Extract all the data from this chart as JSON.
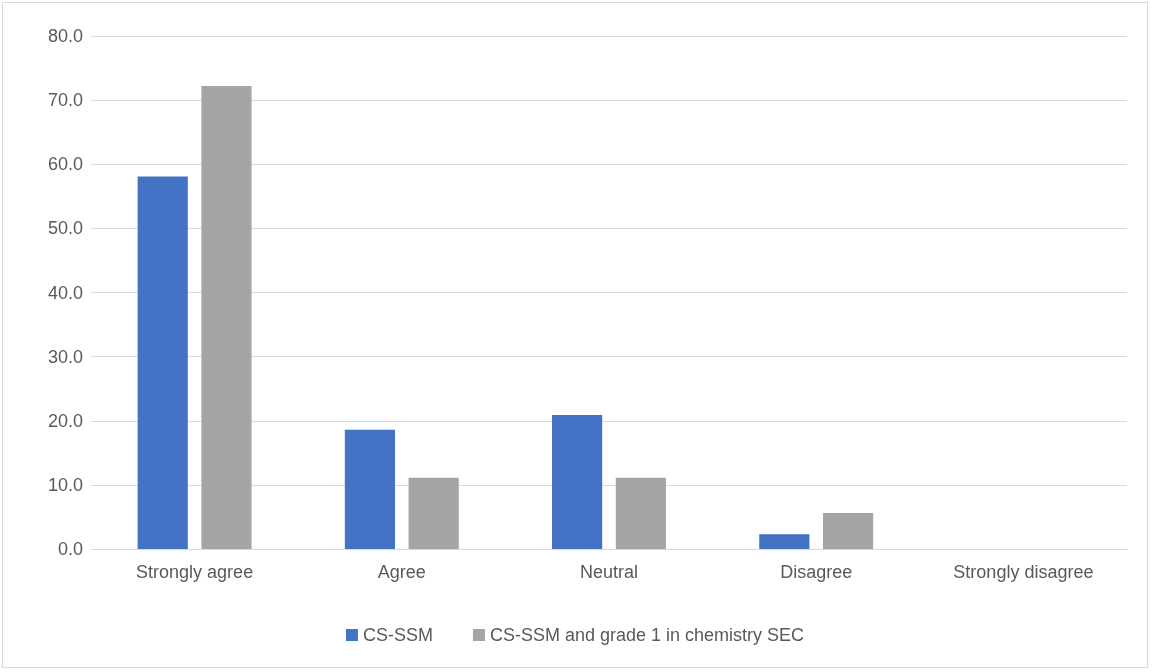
{
  "chart_data": {
    "type": "bar",
    "categories": [
      "Strongly agree",
      "Agree",
      "Neutral",
      "Disagree",
      "Strongly disagree"
    ],
    "series": [
      {
        "name": "CS-SSM",
        "color": "#4472c4",
        "values": [
          58.1,
          18.6,
          20.9,
          2.3,
          0
        ]
      },
      {
        "name": "CS-SSM and grade 1 in chemistry SEC",
        "color": "#a5a5a5",
        "values": [
          72.2,
          11.1,
          11.1,
          5.6,
          0
        ]
      }
    ],
    "ylim": [
      0,
      80
    ],
    "yticks": [
      {
        "value": 0,
        "label": "0.0"
      },
      {
        "value": 10,
        "label": "10.0"
      },
      {
        "value": 20,
        "label": "20.0"
      },
      {
        "value": 30,
        "label": "30.0"
      },
      {
        "value": 40,
        "label": "40.0"
      },
      {
        "value": 50,
        "label": "50.0"
      },
      {
        "value": 60,
        "label": "60.0"
      },
      {
        "value": 70,
        "label": "70.0"
      },
      {
        "value": 80,
        "label": "80.0"
      }
    ],
    "grid": "y",
    "legend": "bottom"
  }
}
